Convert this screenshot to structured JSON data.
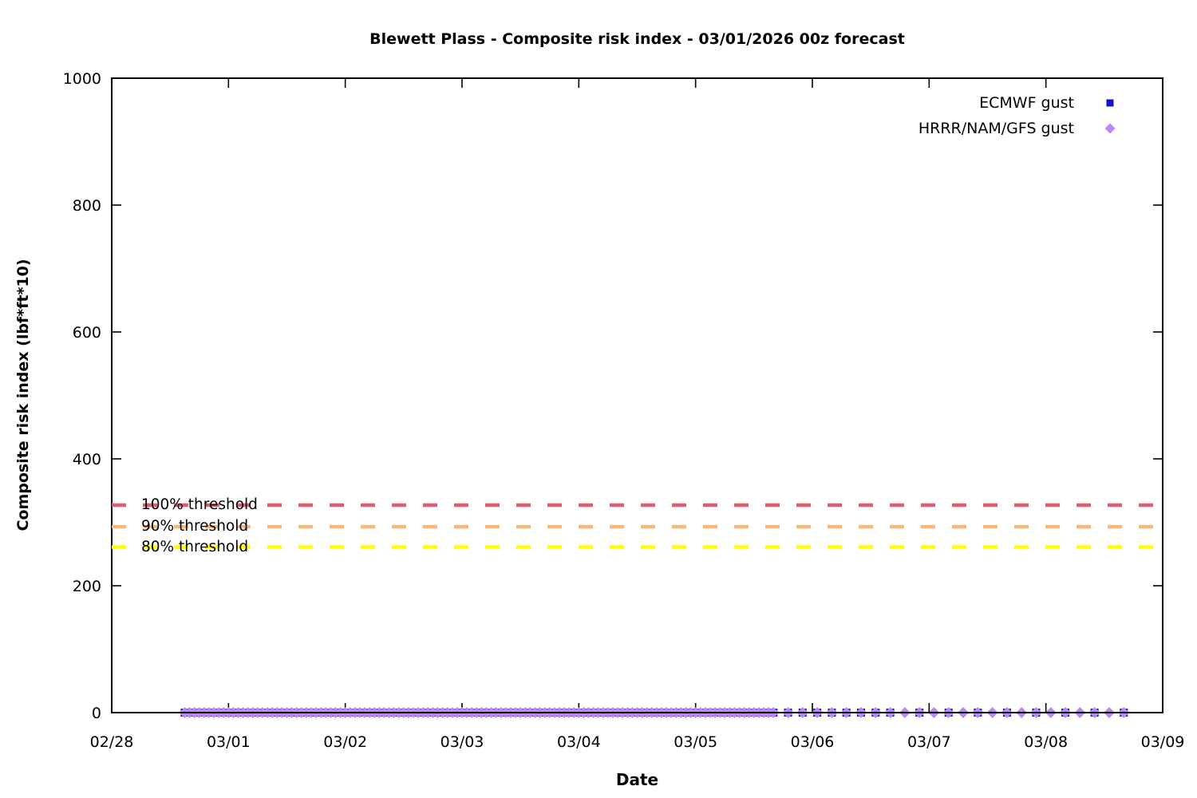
{
  "chart_data": {
    "type": "scatter",
    "title": "Blewett Plass - Composite risk index - 03/01/2026 00z forecast",
    "xlabel": "Date",
    "ylabel": "Composite risk index (lbf*ft*10)",
    "x_tick_labels": [
      "02/28",
      "03/01",
      "03/02",
      "03/03",
      "03/04",
      "03/05",
      "03/06",
      "03/07",
      "03/08",
      "03/09"
    ],
    "y_tick_labels": [
      "0",
      "200",
      "400",
      "600",
      "800",
      "1000"
    ],
    "ylim": [
      0,
      1000
    ],
    "x_range_days": [
      0,
      9
    ],
    "grid": false,
    "legend_position": "top-right-inside",
    "axis_color": "#000000",
    "series": [
      {
        "name": "ECMWF gust",
        "marker": "square",
        "color": "#1414cc",
        "constant_value": 0,
        "segments": [
          {
            "start_day": 0.625,
            "end_day": 5.625,
            "interval_hours": 1
          },
          {
            "start_day": 5.6667,
            "end_day": 6.6667,
            "interval_hours": 3
          },
          {
            "start_day": 6.9167,
            "end_day": 8.6667,
            "interval_hours": 6
          }
        ]
      },
      {
        "name": "HRRR/NAM/GFS gust",
        "marker": "diamond",
        "color": "#bb88f0",
        "constant_value": 0,
        "segments": [
          {
            "start_day": 0.625,
            "end_day": 5.625,
            "interval_hours": 1
          },
          {
            "start_day": 5.6667,
            "end_day": 8.6667,
            "interval_hours": 3
          }
        ]
      }
    ],
    "thresholds": [
      {
        "label": "100% threshold",
        "value": 327,
        "color": "#e05c6e"
      },
      {
        "label": "90% threshold",
        "value": 293,
        "color": "#fab878"
      },
      {
        "label": "80% threshold",
        "value": 261,
        "color": "#ffff00"
      }
    ]
  }
}
